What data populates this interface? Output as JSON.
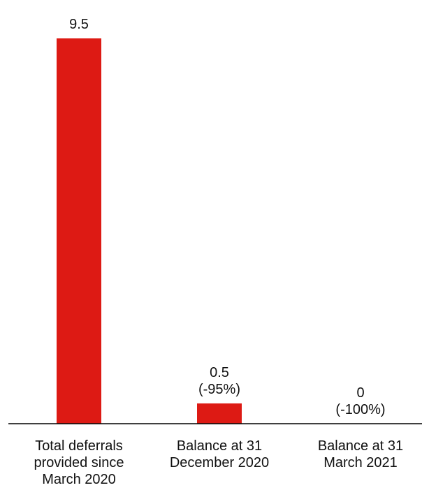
{
  "chart_data": {
    "type": "bar",
    "categories": [
      [
        "Total deferrals",
        "provided since",
        "March 2020"
      ],
      [
        "Balance at 31",
        "December 2020"
      ],
      [
        "Balance at 31",
        "March 2021"
      ]
    ],
    "values": [
      9.5,
      0.5,
      0
    ],
    "data_labels": [
      [
        "9.5"
      ],
      [
        "0.5",
        "(-95%)"
      ],
      [
        "0",
        "(-100%)"
      ]
    ],
    "bar_color": "#dd1a14",
    "axis_color": "#000000",
    "ylim": [
      0,
      10
    ],
    "grid": false,
    "legend": "none",
    "title": "",
    "xlabel": "",
    "ylabel": ""
  }
}
